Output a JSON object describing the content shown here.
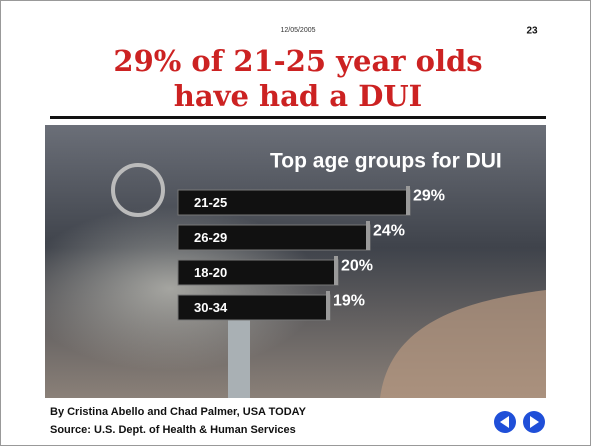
{
  "date": "12/05/2005",
  "page": "23",
  "heading": [
    "29% of 21-25 year olds",
    "have had a DUI"
  ],
  "byline": "By Cristina Abello and Chad Palmer, USA TODAY",
  "source": "Source: U.S. Dept. of Health & Human Services",
  "chart_data": {
    "type": "bar",
    "orientation": "horizontal",
    "title": "Top age groups for DUI",
    "categories": [
      "21-25",
      "26-29",
      "18-20",
      "30-34"
    ],
    "values": [
      29,
      24,
      20,
      19
    ],
    "value_labels": [
      "29%",
      "24%",
      "20%",
      "19%"
    ],
    "color": "#111111"
  }
}
